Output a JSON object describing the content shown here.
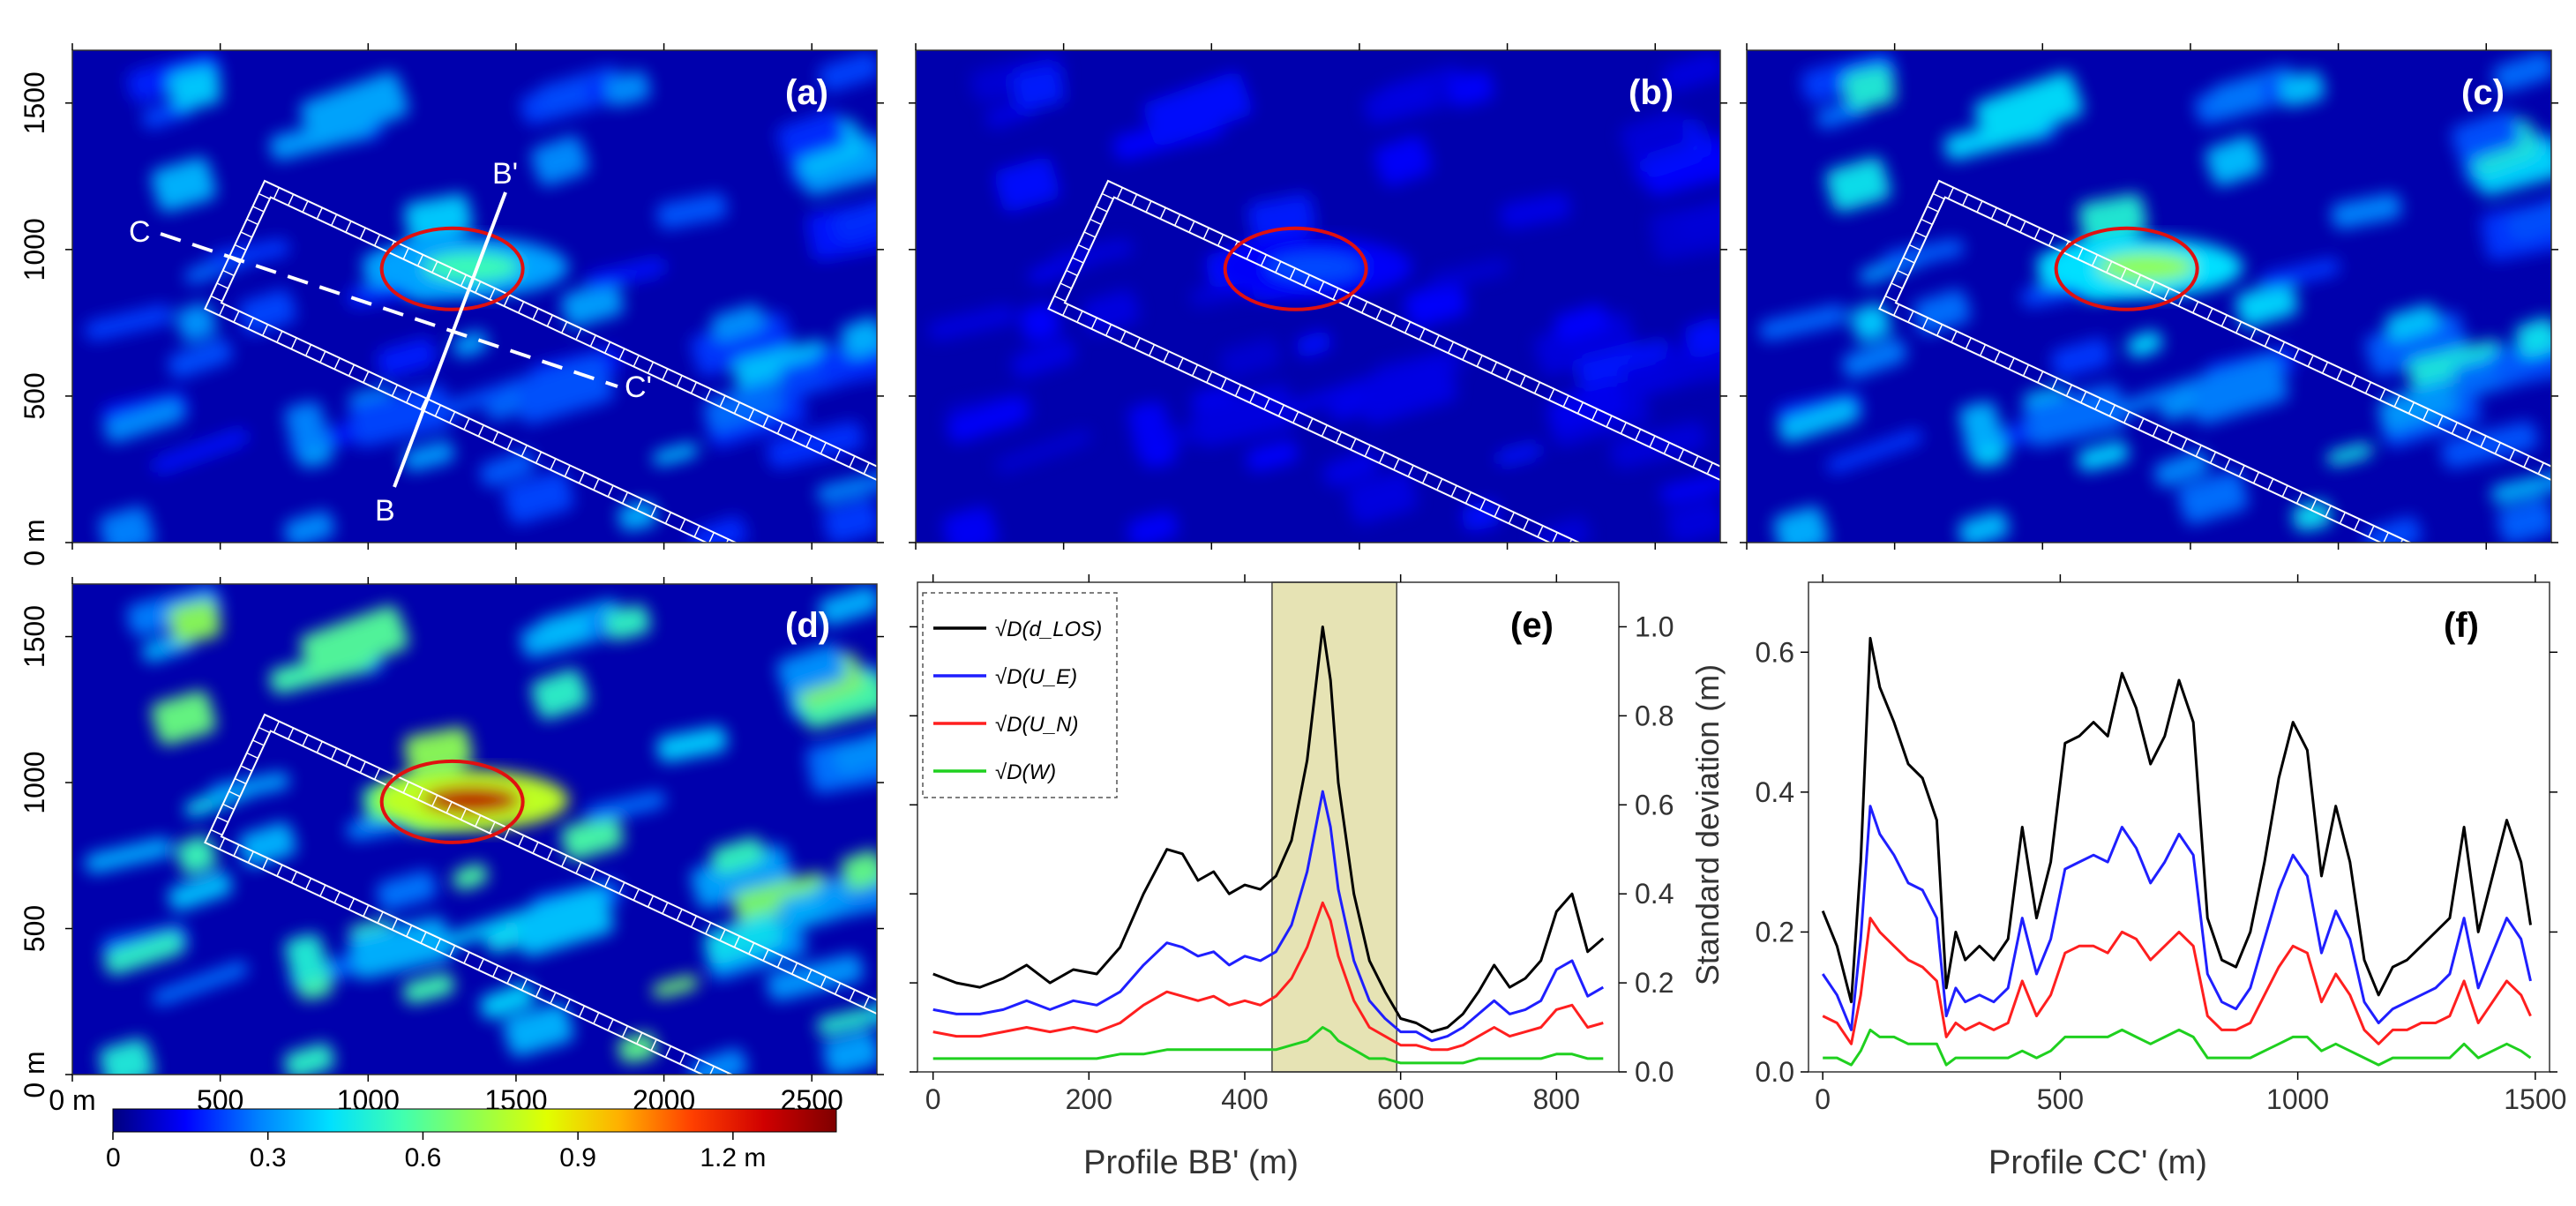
{
  "figure": {
    "panel_labels": [
      "(a)",
      "(b)",
      "(c)",
      "(d)",
      "(e)",
      "(f)"
    ],
    "map_axes": {
      "y_ticks": [
        "0 m",
        "500",
        "1000",
        "1500"
      ],
      "y_tick_values": [
        0,
        500,
        1000,
        1500
      ],
      "x_ticks": [
        "0 m",
        "500",
        "1000",
        "1500",
        "2000",
        "2500"
      ],
      "x_tick_values": [
        0,
        500,
        1000,
        1500,
        2000,
        2500
      ],
      "x_range": [
        0,
        2720
      ],
      "y_range": [
        0,
        1680
      ]
    },
    "profile_markers": {
      "b_start": "B",
      "b_end": "B'",
      "c_start": "C",
      "c_end": "C'"
    },
    "colorbar": {
      "ticks": [
        "0",
        "0.3",
        "0.6",
        "0.9",
        "1.2  m"
      ],
      "tick_values": [
        0,
        0.3,
        0.6,
        0.9,
        1.2
      ],
      "range": [
        0,
        1.4
      ],
      "colors": [
        "#00007f",
        "#0000ff",
        "#0080ff",
        "#00e0ff",
        "#40ffb0",
        "#90ff50",
        "#e0ff00",
        "#ffb000",
        "#ff4000",
        "#d00000",
        "#7f0000"
      ]
    },
    "maps": [
      {
        "panel": "a",
        "intensity": 0.35,
        "highlight": 0.55
      },
      {
        "panel": "b",
        "intensity": 0.12,
        "highlight": 0.22
      },
      {
        "panel": "c",
        "intensity": 0.45,
        "highlight": 0.7
      },
      {
        "panel": "d",
        "intensity": 0.65,
        "highlight": 1.3
      }
    ]
  },
  "chart_data": [
    {
      "type": "line",
      "panel": "e",
      "xlabel": "Profile BB' (m)",
      "ylabel": "",
      "xlim": [
        -20,
        880
      ],
      "ylim": [
        0,
        1.1
      ],
      "x_ticks": [
        0,
        200,
        400,
        600,
        800
      ],
      "y_ticks": [
        0.0,
        0.2,
        0.4,
        0.6,
        0.8,
        1.0
      ],
      "y_tick_labels": [
        "0.0",
        "0.2",
        "0.4",
        "0.6",
        "0.8",
        "1.0"
      ],
      "shaded_region": [
        435,
        595
      ],
      "legend": {
        "entries": [
          "√D(d_LOS)",
          "√D(U_E)",
          "√D(U_N)",
          "√D(W)"
        ],
        "placement": "top-left"
      },
      "x": [
        0,
        30,
        60,
        90,
        120,
        150,
        180,
        210,
        240,
        270,
        300,
        320,
        340,
        360,
        380,
        400,
        420,
        440,
        460,
        480,
        500,
        510,
        520,
        540,
        560,
        580,
        600,
        620,
        640,
        660,
        680,
        700,
        720,
        740,
        760,
        780,
        800,
        820,
        840,
        860
      ],
      "series": [
        {
          "name": "√D(d_LOS)",
          "color": "#000000",
          "values": [
            0.22,
            0.2,
            0.19,
            0.21,
            0.24,
            0.2,
            0.23,
            0.22,
            0.28,
            0.4,
            0.5,
            0.49,
            0.43,
            0.45,
            0.4,
            0.42,
            0.41,
            0.44,
            0.52,
            0.7,
            1.0,
            0.88,
            0.65,
            0.4,
            0.25,
            0.18,
            0.12,
            0.11,
            0.09,
            0.1,
            0.13,
            0.18,
            0.24,
            0.19,
            0.21,
            0.25,
            0.36,
            0.4,
            0.27,
            0.3
          ]
        },
        {
          "name": "√D(U_E)",
          "color": "#1f1fff",
          "values": [
            0.14,
            0.13,
            0.13,
            0.14,
            0.16,
            0.14,
            0.16,
            0.15,
            0.18,
            0.24,
            0.29,
            0.28,
            0.26,
            0.27,
            0.24,
            0.26,
            0.25,
            0.27,
            0.33,
            0.45,
            0.63,
            0.55,
            0.41,
            0.25,
            0.16,
            0.12,
            0.09,
            0.09,
            0.07,
            0.08,
            0.1,
            0.13,
            0.16,
            0.13,
            0.14,
            0.16,
            0.23,
            0.25,
            0.17,
            0.19
          ]
        },
        {
          "name": "√D(U_N)",
          "color": "#ff1f1f",
          "values": [
            0.09,
            0.08,
            0.08,
            0.09,
            0.1,
            0.09,
            0.1,
            0.09,
            0.11,
            0.15,
            0.18,
            0.17,
            0.16,
            0.17,
            0.15,
            0.16,
            0.15,
            0.17,
            0.21,
            0.28,
            0.38,
            0.34,
            0.26,
            0.16,
            0.1,
            0.08,
            0.06,
            0.06,
            0.05,
            0.05,
            0.06,
            0.08,
            0.1,
            0.08,
            0.09,
            0.1,
            0.14,
            0.15,
            0.1,
            0.11
          ]
        },
        {
          "name": "√D(W)",
          "color": "#1fd01f",
          "values": [
            0.03,
            0.03,
            0.03,
            0.03,
            0.03,
            0.03,
            0.03,
            0.03,
            0.04,
            0.04,
            0.05,
            0.05,
            0.05,
            0.05,
            0.05,
            0.05,
            0.05,
            0.05,
            0.06,
            0.07,
            0.1,
            0.09,
            0.07,
            0.05,
            0.03,
            0.03,
            0.02,
            0.02,
            0.02,
            0.02,
            0.02,
            0.03,
            0.03,
            0.03,
            0.03,
            0.03,
            0.04,
            0.04,
            0.03,
            0.03
          ]
        }
      ]
    },
    {
      "type": "line",
      "panel": "f",
      "xlabel": "Profile CC' (m)",
      "ylabel": "Standard deviation (m)",
      "xlim": [
        -30,
        1530
      ],
      "ylim": [
        0,
        0.7
      ],
      "x_ticks": [
        0,
        500,
        1000,
        1500
      ],
      "y_ticks": [
        0.0,
        0.2,
        0.4,
        0.6
      ],
      "y_tick_labels": [
        "0.0",
        "0.2",
        "0.4",
        "0.6"
      ],
      "x": [
        0,
        30,
        60,
        80,
        100,
        120,
        150,
        180,
        210,
        240,
        260,
        280,
        300,
        330,
        360,
        390,
        420,
        450,
        480,
        510,
        540,
        570,
        600,
        630,
        660,
        690,
        720,
        750,
        780,
        810,
        840,
        870,
        900,
        930,
        960,
        990,
        1020,
        1050,
        1080,
        1110,
        1140,
        1170,
        1200,
        1230,
        1260,
        1290,
        1320,
        1350,
        1380,
        1410,
        1440,
        1470,
        1490
      ],
      "series": [
        {
          "name": "√D(d_LOS)",
          "color": "#000000",
          "values": [
            0.23,
            0.18,
            0.1,
            0.3,
            0.62,
            0.55,
            0.5,
            0.44,
            0.42,
            0.36,
            0.12,
            0.2,
            0.16,
            0.18,
            0.16,
            0.19,
            0.35,
            0.22,
            0.3,
            0.47,
            0.48,
            0.5,
            0.48,
            0.57,
            0.52,
            0.44,
            0.48,
            0.56,
            0.5,
            0.22,
            0.16,
            0.15,
            0.2,
            0.3,
            0.42,
            0.5,
            0.46,
            0.28,
            0.38,
            0.3,
            0.16,
            0.11,
            0.15,
            0.16,
            0.18,
            0.2,
            0.22,
            0.35,
            0.2,
            0.28,
            0.36,
            0.3,
            0.21
          ]
        },
        {
          "name": "√D(U_E)",
          "color": "#1f1fff",
          "values": [
            0.14,
            0.11,
            0.06,
            0.19,
            0.38,
            0.34,
            0.31,
            0.27,
            0.26,
            0.22,
            0.08,
            0.12,
            0.1,
            0.11,
            0.1,
            0.12,
            0.22,
            0.14,
            0.19,
            0.29,
            0.3,
            0.31,
            0.3,
            0.35,
            0.32,
            0.27,
            0.3,
            0.34,
            0.31,
            0.14,
            0.1,
            0.09,
            0.12,
            0.19,
            0.26,
            0.31,
            0.28,
            0.17,
            0.23,
            0.19,
            0.1,
            0.07,
            0.09,
            0.1,
            0.11,
            0.12,
            0.14,
            0.22,
            0.12,
            0.17,
            0.22,
            0.19,
            0.13
          ]
        },
        {
          "name": "√D(U_N)",
          "color": "#ff1f1f",
          "values": [
            0.08,
            0.07,
            0.04,
            0.11,
            0.22,
            0.2,
            0.18,
            0.16,
            0.15,
            0.13,
            0.05,
            0.07,
            0.06,
            0.07,
            0.06,
            0.07,
            0.13,
            0.08,
            0.11,
            0.17,
            0.18,
            0.18,
            0.17,
            0.2,
            0.19,
            0.16,
            0.18,
            0.2,
            0.18,
            0.08,
            0.06,
            0.06,
            0.07,
            0.11,
            0.15,
            0.18,
            0.17,
            0.1,
            0.14,
            0.11,
            0.06,
            0.04,
            0.06,
            0.06,
            0.07,
            0.07,
            0.08,
            0.13,
            0.07,
            0.1,
            0.13,
            0.11,
            0.08
          ]
        },
        {
          "name": "√D(W)",
          "color": "#1fd01f",
          "values": [
            0.02,
            0.02,
            0.01,
            0.03,
            0.06,
            0.05,
            0.05,
            0.04,
            0.04,
            0.04,
            0.01,
            0.02,
            0.02,
            0.02,
            0.02,
            0.02,
            0.03,
            0.02,
            0.03,
            0.05,
            0.05,
            0.05,
            0.05,
            0.06,
            0.05,
            0.04,
            0.05,
            0.06,
            0.05,
            0.02,
            0.02,
            0.02,
            0.02,
            0.03,
            0.04,
            0.05,
            0.05,
            0.03,
            0.04,
            0.03,
            0.02,
            0.01,
            0.02,
            0.02,
            0.02,
            0.02,
            0.02,
            0.04,
            0.02,
            0.03,
            0.04,
            0.03,
            0.02
          ]
        }
      ]
    }
  ]
}
